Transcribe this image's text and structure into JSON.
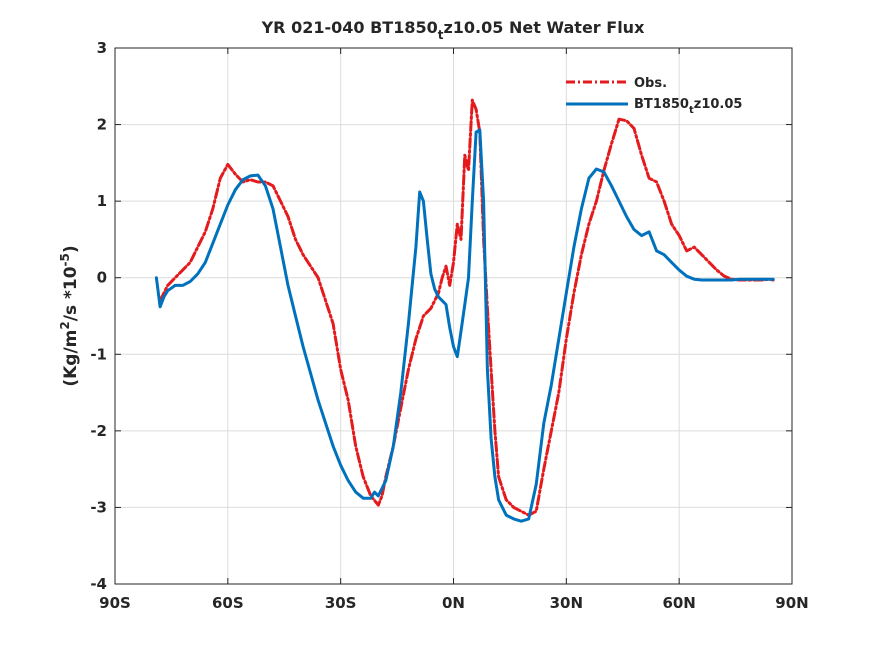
{
  "chart_data": {
    "type": "line",
    "title_main": "YR 021-040 BT1850",
    "title_sub": "t",
    "title_rest": "z10.05  Net Water Flux",
    "ylabel_pre": "(Kg/m",
    "ylabel_sup1": "2",
    "ylabel_mid": "/s *10",
    "ylabel_sup2": "-5",
    "ylabel_post": ")",
    "xlim": [
      -90,
      90
    ],
    "ylim": [
      -4,
      3
    ],
    "xticks": [
      -90,
      -60,
      -30,
      0,
      30,
      60,
      90
    ],
    "xtick_labels": [
      "90S",
      "60S",
      "30S",
      "0N",
      "30N",
      "60N",
      "90N"
    ],
    "yticks": [
      -4,
      -3,
      -2,
      -1,
      0,
      1,
      2,
      3
    ],
    "ytick_labels": [
      "-4",
      "-3",
      "-2",
      "-1",
      "0",
      "1",
      "2",
      "3"
    ],
    "grid": true,
    "legend_position": "top-right",
    "series": [
      {
        "name": "Obs.",
        "color": "#e41a1c",
        "dash": "dash-dot",
        "x": [
          -78,
          -77,
          -76,
          -74,
          -72,
          -70,
          -68,
          -66,
          -64,
          -62,
          -60,
          -58,
          -56,
          -54,
          -52,
          -50,
          -48,
          -46,
          -44,
          -42,
          -40,
          -38,
          -36,
          -34,
          -32,
          -30,
          -28,
          -26,
          -24,
          -22,
          -20,
          -19,
          -18,
          -16,
          -14,
          -12,
          -10,
          -8,
          -6,
          -4,
          -3,
          -2,
          -1,
          0,
          1,
          2,
          3,
          4,
          5,
          6,
          7,
          8,
          9,
          10,
          11,
          12,
          14,
          16,
          18,
          20,
          22,
          24,
          26,
          28,
          30,
          32,
          34,
          36,
          38,
          40,
          42,
          44,
          46,
          48,
          50,
          52,
          54,
          56,
          58,
          60,
          62,
          64,
          66,
          68,
          70,
          72,
          74,
          76,
          78,
          80,
          82,
          84,
          85
        ],
        "y": [
          -0.3,
          -0.2,
          -0.1,
          0.0,
          0.1,
          0.2,
          0.4,
          0.6,
          0.9,
          1.3,
          1.48,
          1.35,
          1.25,
          1.28,
          1.25,
          1.25,
          1.2,
          1.0,
          0.8,
          0.5,
          0.3,
          0.15,
          0.0,
          -0.3,
          -0.6,
          -1.2,
          -1.6,
          -2.2,
          -2.6,
          -2.85,
          -2.97,
          -2.85,
          -2.6,
          -2.2,
          -1.7,
          -1.2,
          -0.8,
          -0.5,
          -0.4,
          -0.2,
          0.0,
          0.15,
          -0.1,
          0.2,
          0.7,
          0.5,
          1.6,
          1.4,
          2.32,
          2.2,
          1.9,
          0.5,
          -0.4,
          -1.2,
          -2.0,
          -2.6,
          -2.9,
          -3.0,
          -3.05,
          -3.1,
          -3.05,
          -2.5,
          -2.0,
          -1.5,
          -0.8,
          -0.2,
          0.3,
          0.7,
          1.0,
          1.4,
          1.75,
          2.07,
          2.05,
          1.95,
          1.6,
          1.3,
          1.25,
          1.0,
          0.7,
          0.55,
          0.35,
          0.4,
          0.3,
          0.2,
          0.1,
          0.02,
          -0.02,
          -0.03,
          -0.03,
          -0.03,
          -0.03,
          -0.02,
          -0.03
        ]
      },
      {
        "name": "BT1850",
        "name_sub": "t",
        "name_rest": "z10.05",
        "color": "#0072bd",
        "dash": "solid",
        "x": [
          -79,
          -78,
          -77,
          -76,
          -74,
          -72,
          -70,
          -68,
          -66,
          -64,
          -62,
          -60,
          -58,
          -56,
          -54,
          -52,
          -50,
          -48,
          -46,
          -44,
          -42,
          -40,
          -38,
          -36,
          -34,
          -32,
          -30,
          -28,
          -26,
          -24,
          -22,
          -21,
          -20,
          -18,
          -16,
          -14,
          -12,
          -10,
          -9,
          -8,
          -7,
          -6,
          -5,
          -4,
          -3,
          -2,
          -1,
          0,
          1,
          2,
          3,
          4,
          5,
          6,
          7,
          8,
          9,
          10,
          11,
          12,
          14,
          16,
          18,
          20,
          22,
          23,
          24,
          26,
          28,
          30,
          32,
          34,
          36,
          38,
          40,
          42,
          44,
          46,
          48,
          50,
          52,
          54,
          56,
          58,
          60,
          62,
          64,
          66,
          68,
          70,
          72,
          74,
          76,
          78,
          80,
          82,
          84,
          85
        ],
        "y": [
          0.0,
          -0.38,
          -0.25,
          -0.17,
          -0.1,
          -0.1,
          -0.05,
          0.05,
          0.2,
          0.45,
          0.7,
          0.95,
          1.15,
          1.28,
          1.33,
          1.34,
          1.2,
          0.9,
          0.4,
          -0.1,
          -0.5,
          -0.9,
          -1.25,
          -1.6,
          -1.9,
          -2.2,
          -2.45,
          -2.65,
          -2.8,
          -2.88,
          -2.88,
          -2.8,
          -2.85,
          -2.65,
          -2.2,
          -1.5,
          -0.6,
          0.4,
          1.12,
          1.0,
          0.5,
          0.05,
          -0.15,
          -0.25,
          -0.3,
          -0.35,
          -0.65,
          -0.9,
          -1.03,
          -0.7,
          -0.35,
          0.0,
          1.0,
          1.9,
          1.93,
          1.0,
          -1.2,
          -2.1,
          -2.6,
          -2.9,
          -3.1,
          -3.15,
          -3.18,
          -3.15,
          -2.7,
          -2.3,
          -1.9,
          -1.4,
          -0.8,
          -0.2,
          0.4,
          0.9,
          1.3,
          1.42,
          1.38,
          1.2,
          1.0,
          0.8,
          0.63,
          0.55,
          0.6,
          0.35,
          0.3,
          0.2,
          0.1,
          0.02,
          -0.02,
          -0.03,
          -0.03,
          -0.03,
          -0.03,
          -0.03,
          -0.02,
          -0.02,
          -0.02,
          -0.02,
          -0.02,
          -0.02
        ]
      }
    ]
  }
}
